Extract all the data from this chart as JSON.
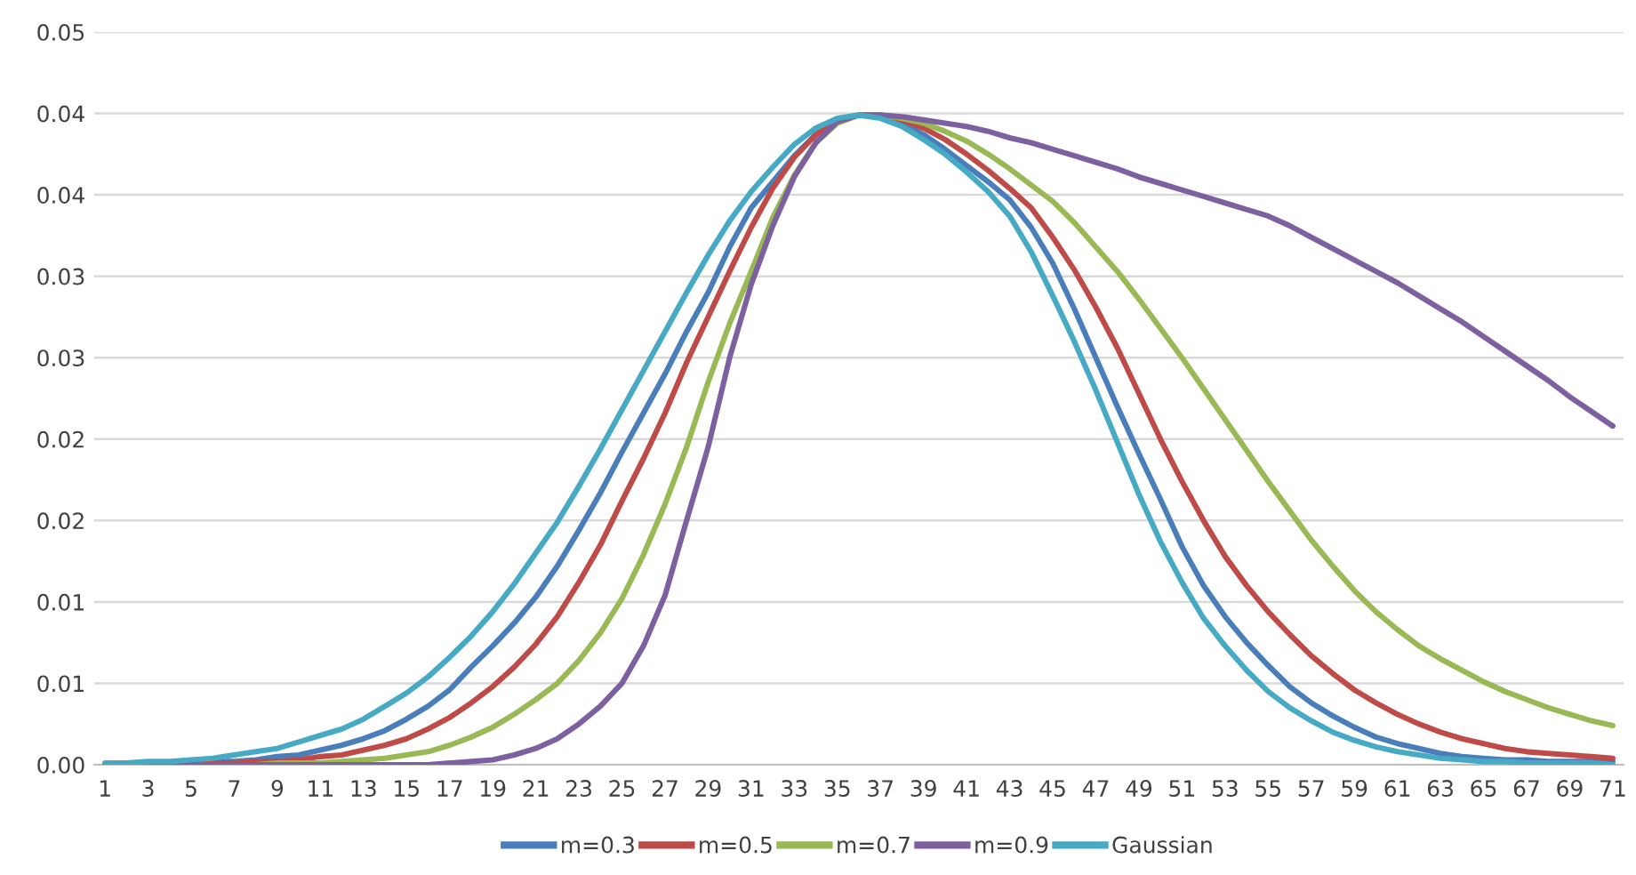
{
  "chart_data": {
    "type": "line",
    "categories": [
      "1",
      null,
      "3",
      null,
      "5",
      null,
      "7",
      null,
      "9",
      null,
      "11",
      null,
      "13",
      null,
      "15",
      null,
      "17",
      null,
      "19",
      null,
      "21",
      null,
      "23",
      null,
      "25",
      null,
      "27",
      null,
      "29",
      null,
      "31",
      null,
      "33",
      null,
      "35",
      null,
      "37",
      null,
      "39",
      null,
      "41",
      null,
      "43",
      null,
      "45",
      null,
      "47",
      null,
      "49",
      null,
      "51",
      null,
      "53",
      null,
      "55",
      null,
      "57",
      null,
      "59",
      null,
      "61",
      null,
      "63",
      null,
      "65",
      null,
      "67",
      null,
      "69",
      null,
      "71"
    ],
    "series": [
      {
        "name": "m=0.3",
        "color": "#4a7ebb",
        "values": [
          0.0,
          0.0,
          0.0001,
          0.0001,
          0.0001,
          0.0002,
          0.0002,
          0.0003,
          0.0005,
          0.0006,
          0.0009,
          0.0012,
          0.0016,
          0.0021,
          0.0028,
          0.0036,
          0.0046,
          0.006,
          0.0073,
          0.0087,
          0.0103,
          0.0122,
          0.0144,
          0.0167,
          0.0192,
          0.0216,
          0.024,
          0.0266,
          0.029,
          0.0318,
          0.0342,
          0.0358,
          0.0374,
          0.0387,
          0.0395,
          0.0399,
          0.0398,
          0.0394,
          0.0387,
          0.0378,
          0.0368,
          0.0358,
          0.0347,
          0.033,
          0.0308,
          0.028,
          0.025,
          0.022,
          0.0191,
          0.0163,
          0.0134,
          0.011,
          0.0091,
          0.0075,
          0.0061,
          0.0048,
          0.0038,
          0.003,
          0.0023,
          0.0017,
          0.0013,
          0.001,
          0.0007,
          0.0005,
          0.0004,
          0.0003,
          0.0003,
          0.0002,
          0.0002,
          0.0002,
          0.0002
        ]
      },
      {
        "name": "m=0.5",
        "color": "#be4b48",
        "values": [
          null,
          null,
          null,
          0.0,
          0.0001,
          0.0001,
          0.0001,
          0.0002,
          0.0002,
          0.0003,
          0.0005,
          0.0006,
          0.0009,
          0.0012,
          0.0016,
          0.0022,
          0.0029,
          0.0038,
          0.0048,
          0.006,
          0.0074,
          0.0091,
          0.0112,
          0.0135,
          0.0162,
          0.0188,
          0.0216,
          0.0247,
          0.0275,
          0.0303,
          0.033,
          0.0354,
          0.0373,
          0.0387,
          0.0396,
          0.0399,
          0.0399,
          0.0396,
          0.0391,
          0.0384,
          0.0375,
          0.0365,
          0.0354,
          0.0342,
          0.0324,
          0.0304,
          0.0281,
          0.0256,
          0.0228,
          0.02,
          0.0174,
          0.015,
          0.0128,
          0.011,
          0.0094,
          0.008,
          0.0067,
          0.0056,
          0.0046,
          0.0038,
          0.0031,
          0.0025,
          0.002,
          0.0016,
          0.0013,
          0.001,
          0.0008,
          0.0007,
          0.0006,
          0.0005,
          0.0004
        ]
      },
      {
        "name": "m=0.7",
        "color": "#98b954",
        "values": [
          null,
          null,
          null,
          null,
          null,
          null,
          0.0,
          0.0,
          0.0001,
          0.0001,
          0.0001,
          0.0002,
          0.0003,
          0.0004,
          0.0006,
          0.0008,
          0.0012,
          0.0017,
          0.0023,
          0.0031,
          0.004,
          0.005,
          0.0064,
          0.0081,
          0.0102,
          0.0129,
          0.016,
          0.0195,
          0.0235,
          0.0271,
          0.0303,
          0.0336,
          0.0362,
          0.0382,
          0.0394,
          0.0399,
          0.0399,
          0.0397,
          0.0394,
          0.0389,
          0.0383,
          0.0375,
          0.0366,
          0.0356,
          0.0346,
          0.0333,
          0.0318,
          0.0303,
          0.0286,
          0.0268,
          0.025,
          0.0231,
          0.0212,
          0.0193,
          0.0174,
          0.0156,
          0.0138,
          0.0122,
          0.0107,
          0.0094,
          0.0083,
          0.0073,
          0.0065,
          0.0058,
          0.0051,
          0.0045,
          0.004,
          0.0035,
          0.0031,
          0.0027,
          0.0024
        ]
      },
      {
        "name": "m=0.9",
        "color": "#7d60a0",
        "values": [
          0.0,
          0.0,
          0.0,
          0.0,
          0.0,
          0.0,
          0.0,
          0.0,
          0.0,
          0.0,
          0.0,
          0.0,
          0.0,
          0.0,
          0.0,
          0.0,
          0.0001,
          0.0002,
          0.0003,
          0.0006,
          0.001,
          0.0016,
          0.0025,
          0.0036,
          0.005,
          0.0073,
          0.0104,
          0.015,
          0.0195,
          0.025,
          0.0295,
          0.0331,
          0.0361,
          0.0382,
          0.0395,
          0.0399,
          0.0399,
          0.0398,
          0.0396,
          0.0394,
          0.0392,
          0.0389,
          0.0385,
          0.0382,
          0.0378,
          0.0374,
          0.037,
          0.0366,
          0.0361,
          0.0357,
          0.0353,
          0.0349,
          0.0345,
          0.0341,
          0.0337,
          0.0331,
          0.0324,
          0.0317,
          0.031,
          0.0303,
          0.0296,
          0.0288,
          0.028,
          0.0272,
          0.0263,
          0.0254,
          0.0245,
          0.0236,
          0.0226,
          0.0217,
          0.0208
        ]
      },
      {
        "name": "Gaussian",
        "color": "#46aac5",
        "values": [
          0.0001,
          0.0001,
          0.0002,
          0.0002,
          0.0003,
          0.0004,
          0.0006,
          0.0008,
          0.001,
          0.0014,
          0.0018,
          0.0022,
          0.0028,
          0.0036,
          0.0044,
          0.0054,
          0.0066,
          0.0079,
          0.0094,
          0.0111,
          0.013,
          0.0149,
          0.0171,
          0.0194,
          0.0218,
          0.0242,
          0.0266,
          0.029,
          0.0313,
          0.0334,
          0.0352,
          0.0367,
          0.0381,
          0.0391,
          0.0397,
          0.0399,
          0.0397,
          0.0392,
          0.0384,
          0.0375,
          0.0364,
          0.0352,
          0.0337,
          0.0315,
          0.0288,
          0.026,
          0.023,
          0.0198,
          0.0166,
          0.0137,
          0.0112,
          0.009,
          0.0073,
          0.0058,
          0.0045,
          0.0035,
          0.0027,
          0.002,
          0.0015,
          0.0011,
          0.0008,
          0.0006,
          0.0004,
          0.0003,
          0.0002,
          0.0002,
          0.0001,
          0.0001,
          0.0001,
          0.0001,
          0.0
        ]
      }
    ],
    "ylim": [
      0,
      0.045
    ],
    "yticks": [
      {
        "value": 0,
        "label": "0.00"
      },
      {
        "value": 0.005,
        "label": "0.01"
      },
      {
        "value": 0.01,
        "label": "0.01"
      },
      {
        "value": 0.015,
        "label": "0.02"
      },
      {
        "value": 0.02,
        "label": "0.02"
      },
      {
        "value": 0.025,
        "label": "0.03"
      },
      {
        "value": 0.03,
        "label": "0.03"
      },
      {
        "value": 0.035,
        "label": "0.04"
      },
      {
        "value": 0.04,
        "label": "0.04"
      },
      {
        "value": 0.045,
        "label": "0.05"
      }
    ],
    "grid": "y",
    "legend": "bottom",
    "marker": "none",
    "line_style": "solid"
  }
}
